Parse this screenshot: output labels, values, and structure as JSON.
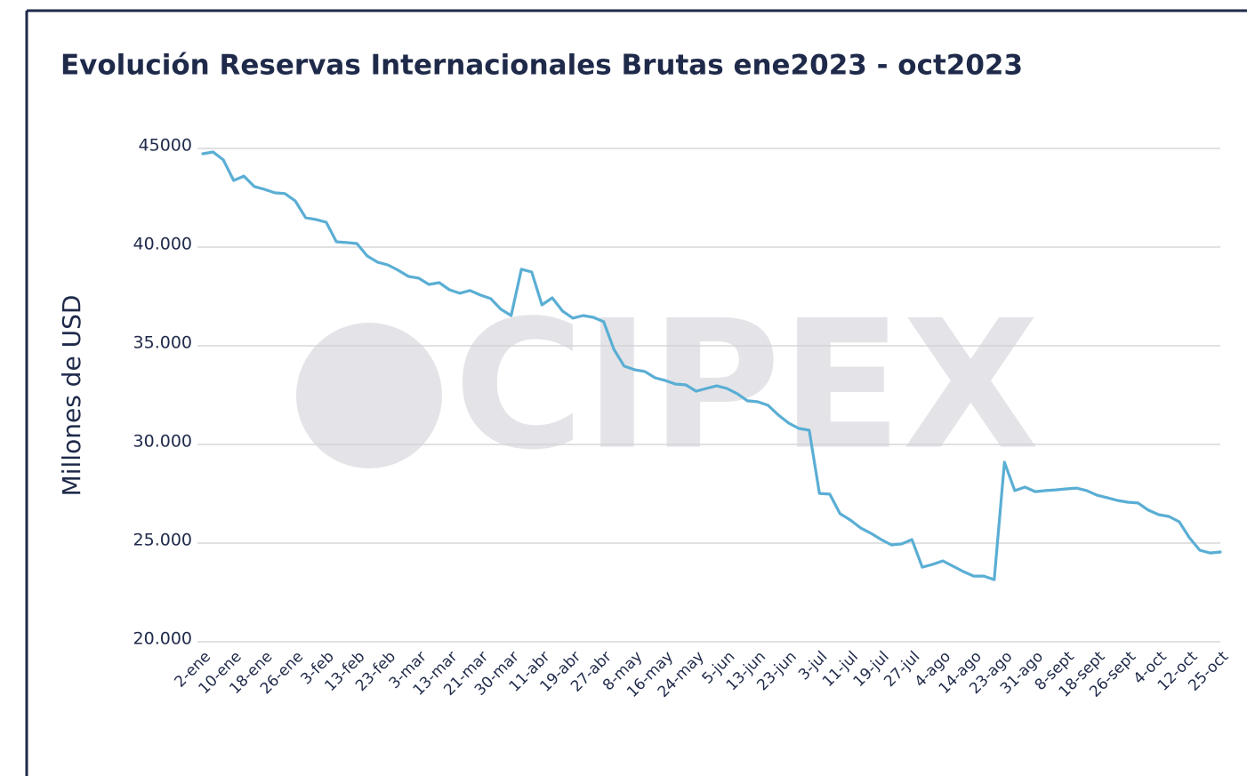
{
  "chart_data": {
    "type": "line",
    "title": "Evolución Reservas Internacionales Brutas ene2023 - oct2023",
    "ylabel": "Millones de USD",
    "watermark": "CIPEX",
    "color": "#5aaed4",
    "grid": true,
    "ylim": [
      20000,
      45000
    ],
    "yticks": [
      {
        "value": 20000,
        "label": "20.000"
      },
      {
        "value": 25000,
        "label": "25.000"
      },
      {
        "value": 30000,
        "label": "30.000"
      },
      {
        "value": 35000,
        "label": "35.000"
      },
      {
        "value": 40000,
        "label": "40.000"
      },
      45000
    ],
    "categories": [
      "2-ene",
      null,
      null,
      "10-ene",
      null,
      null,
      "18-ene",
      null,
      null,
      "26-ene",
      null,
      null,
      "3-feb",
      null,
      null,
      "13-feb",
      null,
      null,
      "23-feb",
      null,
      null,
      "3-mar",
      null,
      null,
      "13-mar",
      null,
      null,
      "21-mar",
      null,
      null,
      "30-mar",
      null,
      null,
      "11-abr",
      null,
      null,
      "19-abr",
      null,
      null,
      "27-abr",
      null,
      null,
      "8-may",
      null,
      null,
      "16-may",
      null,
      null,
      "24-may",
      null,
      null,
      "5-jun",
      null,
      null,
      "13-jun",
      null,
      null,
      "23-jun",
      null,
      null,
      "3-jul",
      null,
      null,
      "11-jul",
      null,
      null,
      "19-jul",
      null,
      null,
      "27-jul",
      null,
      null,
      "4-ago",
      null,
      null,
      "14-ago",
      null,
      null,
      "23-ago",
      null,
      null,
      "31-ago",
      null,
      null,
      "8-sept",
      null,
      null,
      "18-sept",
      null,
      null,
      "26-sept",
      null,
      null,
      "4-oct",
      null,
      null,
      "12-oct",
      null,
      null,
      "25-oct"
    ],
    "values": [
      44730,
      44820,
      44420,
      43380,
      43600,
      43070,
      42930,
      42750,
      42710,
      42340,
      41490,
      41400,
      41260,
      40270,
      40230,
      40180,
      39550,
      39240,
      39100,
      38830,
      38520,
      38430,
      38110,
      38200,
      37840,
      37660,
      37800,
      37570,
      37390,
      36850,
      36530,
      38880,
      38740,
      37070,
      37430,
      36760,
      36400,
      36530,
      36440,
      36220,
      34820,
      33970,
      33790,
      33700,
      33380,
      33240,
      33060,
      33020,
      32700,
      32840,
      32970,
      32840,
      32570,
      32210,
      32160,
      31980,
      31490,
      31080,
      30810,
      30720,
      27520,
      27480,
      26490,
      26170,
      25770,
      25500,
      25180,
      24910,
      24960,
      25180,
      23780,
      23920,
      24100,
      23830,
      23560,
      23330,
      23330,
      23150,
      29100,
      27660,
      27840,
      27610,
      27660,
      27700,
      27750,
      27790,
      27660,
      27430,
      27300,
      27160,
      27070,
      27030,
      26670,
      26440,
      26350,
      26080,
      25270,
      24640,
      24500,
      24550
    ]
  }
}
